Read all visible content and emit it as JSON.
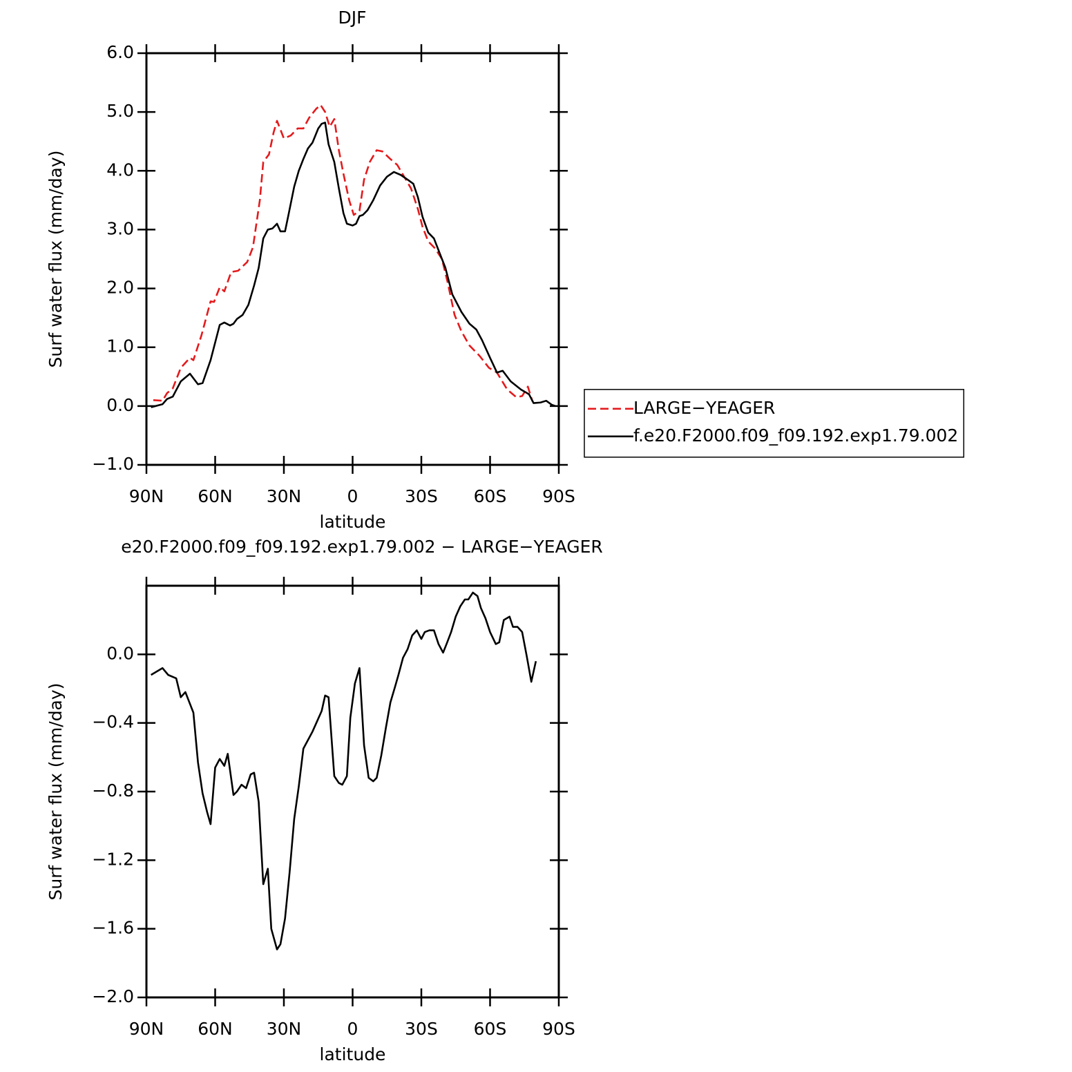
{
  "chart_data": [
    {
      "type": "line",
      "title": "DJF",
      "xlabel": "latitude",
      "ylabel": "Surf water flux (mm/day)",
      "xlim": [
        90,
        -90
      ],
      "xticks": [
        {
          "value": 90,
          "label": "90N"
        },
        {
          "value": 60,
          "label": "60N"
        },
        {
          "value": 30,
          "label": "30N"
        },
        0,
        {
          "value": -30,
          "label": "30S"
        },
        {
          "value": -60,
          "label": "60S"
        },
        {
          "value": -90,
          "label": "90S"
        }
      ],
      "ylim": [
        -1.0,
        6.0
      ],
      "yticks": [
        {
          "value": -1.0,
          "label": "−1.0"
        },
        {
          "value": 0.0,
          "label": "0.0"
        },
        {
          "value": 1.0,
          "label": "1.0"
        },
        {
          "value": 2.0,
          "label": "2.0"
        },
        {
          "value": 3.0,
          "label": "3.0"
        },
        {
          "value": 4.0,
          "label": "4.0"
        },
        {
          "value": 5.0,
          "label": "5.0"
        },
        {
          "value": 6.0,
          "label": "6.0"
        }
      ],
      "legend": "right",
      "series": [
        {
          "name": "LARGE−YEAGER",
          "color": "#e41a1c",
          "linestyle": "dashed",
          "x": [
            87,
            83,
            81,
            78.5,
            75,
            71,
            69.5,
            66,
            62,
            60.5,
            58,
            56,
            53,
            50,
            46,
            43.5,
            40.5,
            39,
            36.5,
            34.5,
            33,
            30,
            27,
            24,
            21.5,
            19,
            16,
            14,
            12,
            10,
            8,
            6,
            4,
            1.5,
            -0.5,
            -3,
            -5,
            -7.5,
            -10.5,
            -13,
            -16.5,
            -19.5,
            -22.5,
            -25.5,
            -28.5,
            -30.5,
            -33,
            -36,
            -39,
            -41.5,
            -44.5,
            -47.5,
            -51,
            -55.5,
            -59.5,
            -63,
            -67.5,
            -71.5,
            -74,
            -76.5,
            -78.5
          ],
          "values": [
            0.1,
            0.09,
            0.22,
            0.3,
            0.65,
            0.82,
            0.78,
            1.2,
            1.78,
            1.77,
            2.02,
            1.95,
            2.28,
            2.3,
            2.45,
            2.7,
            3.5,
            4.15,
            4.28,
            4.65,
            4.85,
            4.55,
            4.6,
            4.72,
            4.72,
            4.9,
            5.05,
            5.12,
            5.0,
            4.75,
            4.88,
            4.35,
            3.95,
            3.5,
            3.25,
            3.32,
            3.85,
            4.15,
            4.35,
            4.33,
            4.2,
            4.1,
            3.9,
            3.7,
            3.35,
            3.05,
            2.8,
            2.68,
            2.5,
            2.1,
            1.55,
            1.27,
            1.03,
            0.85,
            0.65,
            0.57,
            0.28,
            0.15,
            0.17,
            0.33,
            0.08
          ]
        },
        {
          "name": "f.e20.F2000.f09_f09.192.exp1.79.002",
          "color": "#000000",
          "linestyle": "solid",
          "x": [
            88,
            83,
            81,
            78.5,
            75,
            71,
            67.5,
            65.5,
            62,
            58,
            56,
            53.5,
            52,
            50.5,
            48,
            45.5,
            43,
            41,
            39,
            37,
            35,
            33,
            31.5,
            29.5,
            28,
            25.5,
            23.5,
            21.5,
            19.5,
            17.5,
            15,
            13.5,
            12,
            10.5,
            8,
            6,
            4,
            2.5,
            0,
            -1.5,
            -3,
            -4.5,
            -6.5,
            -9,
            -12,
            -15,
            -18,
            -21,
            -24,
            -26.5,
            -28.5,
            -30.5,
            -33,
            -35.5,
            -38.5,
            -40.5,
            -43.5,
            -47.5,
            -51,
            -54,
            -56.5,
            -60,
            -63,
            -65.5,
            -69,
            -73.5,
            -77,
            -79,
            -82,
            -84.5,
            -87,
            -88.5
          ],
          "values": [
            -0.02,
            0.03,
            0.12,
            0.16,
            0.42,
            0.55,
            0.37,
            0.39,
            0.78,
            1.38,
            1.42,
            1.37,
            1.4,
            1.48,
            1.55,
            1.72,
            2.05,
            2.35,
            2.85,
            3.0,
            3.02,
            3.1,
            2.97,
            2.97,
            3.25,
            3.73,
            4.0,
            4.2,
            4.38,
            4.48,
            4.72,
            4.8,
            4.82,
            4.45,
            4.15,
            3.7,
            3.28,
            3.1,
            3.07,
            3.1,
            3.23,
            3.25,
            3.33,
            3.5,
            3.75,
            3.9,
            3.98,
            3.93,
            3.85,
            3.78,
            3.55,
            3.22,
            2.95,
            2.85,
            2.55,
            2.35,
            1.9,
            1.6,
            1.4,
            1.3,
            1.12,
            0.82,
            0.57,
            0.6,
            0.42,
            0.28,
            0.2,
            0.05,
            0.06,
            0.09,
            0.02,
            0.0
          ]
        }
      ]
    },
    {
      "type": "line",
      "title": "e20.F2000.f09_f09.192.exp1.79.002 − LARGE−YEAGER",
      "xlabel": "latitude",
      "ylabel": "Surf water flux (mm/day)",
      "xlim": [
        90,
        -90
      ],
      "xticks": [
        {
          "value": 90,
          "label": "90N"
        },
        {
          "value": 60,
          "label": "60N"
        },
        {
          "value": 30,
          "label": "30N"
        },
        0,
        {
          "value": -30,
          "label": "30S"
        },
        {
          "value": -60,
          "label": "60S"
        },
        {
          "value": -90,
          "label": "90S"
        }
      ],
      "ylim": [
        -2.0,
        0.4
      ],
      "yticks": [
        {
          "value": -2.0,
          "label": "−2.0"
        },
        {
          "value": -1.6,
          "label": "−1.6"
        },
        {
          "value": -1.2,
          "label": "−1.2"
        },
        {
          "value": -0.8,
          "label": "−0.8"
        },
        {
          "value": -0.4,
          "label": "−0.4"
        },
        {
          "value": 0.0,
          "label": "0.0"
        }
      ],
      "color": "#000000",
      "x": [
        88,
        83,
        80.5,
        77,
        75,
        73,
        69.5,
        67.5,
        65.5,
        63.5,
        62,
        60,
        58,
        56,
        54.5,
        52,
        50.5,
        48.5,
        46.5,
        44.5,
        43,
        41,
        39,
        37,
        35.5,
        33,
        31.5,
        29.5,
        27.5,
        25.5,
        23.5,
        21.5,
        19.5,
        17.5,
        15.5,
        13.5,
        12,
        10.5,
        8,
        6,
        4.5,
        2.5,
        1,
        -1,
        -3,
        -5,
        -7,
        -9,
        -10.5,
        -12.5,
        -14.5,
        -16.5,
        -18.5,
        -20,
        -22,
        -24,
        -26,
        -28,
        -30,
        -31.5,
        -33.5,
        -35.5,
        -37.5,
        -39.5,
        -41,
        -43,
        -45,
        -47,
        -49,
        -50.5,
        -52.5,
        -54.5,
        -56,
        -58,
        -60,
        -62.5,
        -64,
        -66,
        -68.5,
        -70,
        -72,
        -74,
        -76,
        -78,
        -80
      ],
      "values": [
        -0.12,
        -0.08,
        -0.12,
        -0.14,
        -0.25,
        -0.22,
        -0.34,
        -0.63,
        -0.81,
        -0.92,
        -0.99,
        -0.66,
        -0.61,
        -0.65,
        -0.58,
        -0.82,
        -0.8,
        -0.76,
        -0.78,
        -0.7,
        -0.69,
        -0.86,
        -1.34,
        -1.25,
        -1.6,
        -1.72,
        -1.69,
        -1.54,
        -1.27,
        -0.96,
        -0.77,
        -0.55,
        -0.5,
        -0.45,
        -0.39,
        -0.33,
        -0.24,
        -0.25,
        -0.71,
        -0.75,
        -0.76,
        -0.71,
        -0.37,
        -0.17,
        -0.08,
        -0.53,
        -0.72,
        -0.74,
        -0.72,
        -0.59,
        -0.43,
        -0.28,
        -0.19,
        -0.12,
        -0.02,
        0.03,
        0.11,
        0.14,
        0.09,
        0.13,
        0.14,
        0.14,
        0.06,
        0.01,
        0.06,
        0.13,
        0.22,
        0.28,
        0.32,
        0.32,
        0.36,
        0.34,
        0.27,
        0.21,
        0.13,
        0.06,
        0.07,
        0.2,
        0.22,
        0.16,
        0.16,
        0.13,
        -0.01,
        -0.16,
        -0.04
      ]
    }
  ]
}
